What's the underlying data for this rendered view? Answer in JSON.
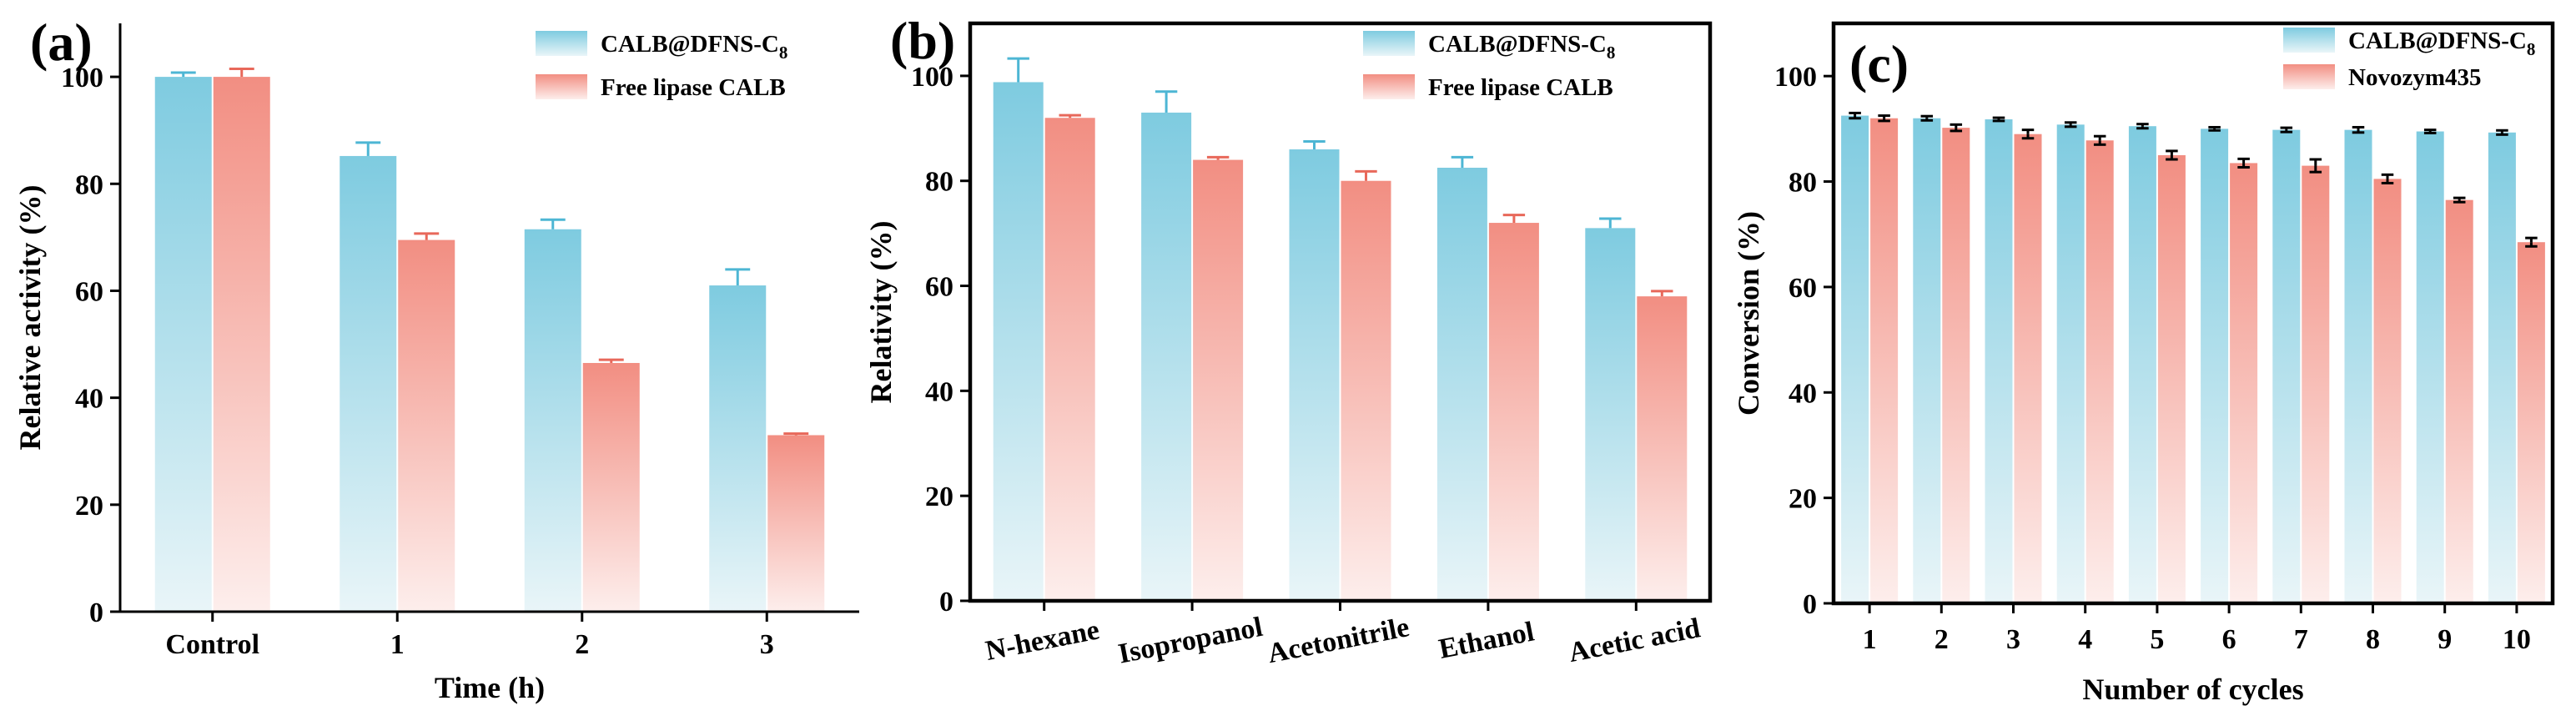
{
  "chart_data": [
    {
      "type": "bar",
      "panel_label": "(a)",
      "categories": [
        "Control",
        "1",
        "2",
        "3"
      ],
      "xlabel": "Time (h)",
      "ylabel": "Relative activity (%)",
      "ylim": [
        0,
        110
      ],
      "yticks": [
        0,
        20,
        40,
        60,
        80,
        100
      ],
      "grid": false,
      "legend_position": "top-right",
      "series": [
        {
          "name": "CALB@DFNS-C",
          "name_sub": "8",
          "color": "#7ecbe0",
          "values": [
            100,
            85.2,
            71.5,
            61.0
          ],
          "errors": [
            0.8,
            2.5,
            1.8,
            3.0
          ]
        },
        {
          "name": "Free lipase CALB",
          "name_sub": "",
          "color": "#f28e82",
          "values": [
            100,
            69.5,
            46.5,
            33.0
          ],
          "errors": [
            1.5,
            1.2,
            0.6,
            0.3
          ]
        }
      ]
    },
    {
      "type": "bar",
      "panel_label": "(b)",
      "categories": [
        "N-hexane",
        "Isopropanol",
        "Acetonitrile",
        "Ethanol",
        "Acetic acid"
      ],
      "xlabel": "",
      "ylabel": "Relativity (%)",
      "ylim": [
        0,
        110
      ],
      "yticks": [
        0,
        20,
        40,
        60,
        80,
        100
      ],
      "grid": false,
      "legend_position": "top-right",
      "series": [
        {
          "name": "CALB@DFNS-C",
          "name_sub": "8",
          "color": "#7ecbe0",
          "values": [
            98.8,
            93.0,
            86.0,
            82.5,
            71.0
          ],
          "errors": [
            4.5,
            4.0,
            1.5,
            2.0,
            1.8
          ]
        },
        {
          "name": "Free lipase CALB",
          "name_sub": "",
          "color": "#f28e82",
          "values": [
            92.0,
            84.0,
            80.0,
            72.0,
            58.0
          ],
          "errors": [
            0.5,
            0.5,
            1.8,
            1.5,
            1.0
          ]
        }
      ]
    },
    {
      "type": "bar",
      "panel_label": "(c)",
      "categories": [
        "1",
        "2",
        "3",
        "4",
        "5",
        "6",
        "7",
        "8",
        "9",
        "10"
      ],
      "xlabel": "Number of cycles",
      "ylabel": "Conversion (%)",
      "ylim": [
        0,
        110
      ],
      "yticks": [
        0,
        20,
        40,
        60,
        80,
        100
      ],
      "grid": false,
      "legend_position": "top-right",
      "series": [
        {
          "name": "CALB@DFNS-C",
          "name_sub": "8",
          "color": "#7ecbe0",
          "values": [
            92.5,
            92.0,
            91.8,
            90.8,
            90.5,
            90.0,
            89.8,
            89.8,
            89.5,
            89.3
          ],
          "errors": [
            0.5,
            0.4,
            0.3,
            0.4,
            0.4,
            0.3,
            0.4,
            0.5,
            0.3,
            0.4
          ]
        },
        {
          "name": "Novozym435",
          "name_sub": "",
          "color": "#f28e82",
          "values": [
            92.0,
            90.2,
            89.0,
            87.8,
            85.0,
            83.5,
            83.0,
            80.5,
            76.5,
            68.5
          ],
          "errors": [
            0.5,
            0.6,
            0.8,
            0.8,
            0.8,
            0.8,
            1.2,
            0.8,
            0.4,
            0.8
          ]
        }
      ]
    }
  ]
}
